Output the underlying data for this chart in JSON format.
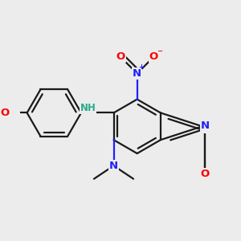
{
  "bg_color": "#ececec",
  "bond_color": "#1a1a1a",
  "bond_width": 1.6,
  "atom_colors": {
    "N": "#2020ff",
    "O": "#ff0000",
    "NH": "#2aaa8a",
    "C": "#1a1a1a"
  },
  "font_size_atom": 9.5,
  "font_size_small": 7.5,
  "font_size_super": 6.0
}
